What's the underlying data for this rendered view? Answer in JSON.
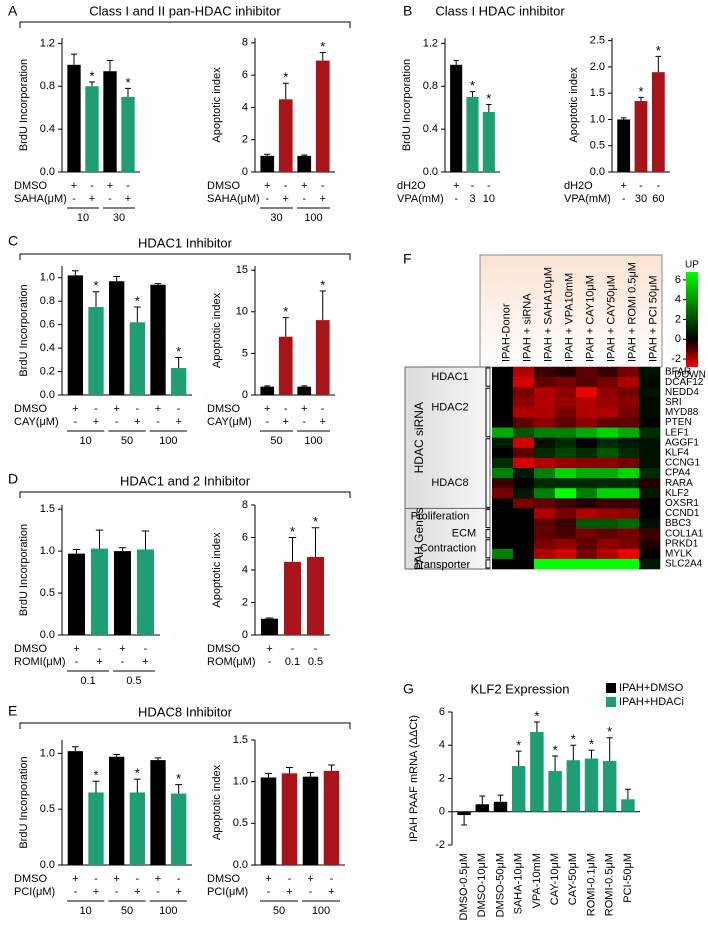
{
  "panels": [
    {
      "label": "A",
      "title": "Class I and II pan-HDAC inhibitor"
    },
    {
      "label": "B",
      "title": "Class I HDAC inhibitor"
    },
    {
      "label": "C",
      "title": "HDAC1 Inhibitor"
    },
    {
      "label": "D",
      "title": "HDAC1 and 2 Inhibitor"
    },
    {
      "label": "E",
      "title": "HDAC8 Inhibitor"
    },
    {
      "label": "F"
    },
    {
      "label": "G"
    }
  ],
  "chart_data": [
    {
      "type": "bar",
      "ylabel": "BrdU Incorporation",
      "ylim": [
        0,
        1.25
      ],
      "yticks": [
        {
          "value": 0,
          "label": "0.0"
        },
        0.4,
        0.8,
        1.2
      ],
      "values": [
        1.0,
        0.8,
        0.94,
        0.7
      ],
      "errors": [
        0.1,
        0.04,
        0.1,
        0.08
      ],
      "colors": [
        "#000000",
        "#1f9e73",
        "#000000",
        "#1f9e73"
      ],
      "markers": [
        null,
        "*",
        null,
        "*"
      ],
      "conditions": [
        {
          "label": "DMSO",
          "values": [
            "+",
            "-",
            "+",
            "-"
          ]
        },
        {
          "label": "SAHA(μM)",
          "values": [
            "-",
            "+",
            "-",
            "+"
          ]
        }
      ],
      "groups": [
        "10",
        "30"
      ]
    },
    {
      "type": "bar",
      "ylabel": "Apoptotic index",
      "ylim": [
        0,
        8.3
      ],
      "yticks": [
        0,
        2,
        4,
        6,
        8
      ],
      "values": [
        1.0,
        4.5,
        1.0,
        6.9
      ],
      "errors": [
        0.1,
        1.0,
        0.05,
        0.5
      ],
      "colors": [
        "#000000",
        "#a8141a",
        "#000000",
        "#a8141a"
      ],
      "markers": [
        null,
        "*",
        null,
        "*"
      ],
      "conditions": [
        {
          "label": "DMSO",
          "values": [
            "+",
            "-",
            "+",
            "-"
          ]
        },
        {
          "label": "SAHA(μM)",
          "values": [
            "-",
            "+",
            "-",
            "+"
          ]
        }
      ],
      "groups": [
        "30",
        "100"
      ]
    },
    {
      "type": "bar",
      "ylabel": "BrdU Incorporation",
      "ylim": [
        0,
        1.25
      ],
      "yticks": [
        {
          "value": 0,
          "label": "0.0"
        },
        0.4,
        0.8,
        1.2
      ],
      "values": [
        1.0,
        0.7,
        0.56
      ],
      "errors": [
        0.04,
        0.05,
        0.07
      ],
      "colors": [
        "#000000",
        "#1f9e73",
        "#1f9e73"
      ],
      "markers": [
        null,
        "*",
        "*"
      ],
      "conditions": [
        {
          "label": "dH2O",
          "values": [
            "+",
            "-",
            "-"
          ]
        },
        {
          "label": "VPA(mM)",
          "values": [
            "-",
            "3",
            "10"
          ]
        }
      ]
    },
    {
      "type": "bar",
      "ylabel": "Apoptotic index",
      "ylim": [
        0,
        2.55
      ],
      "yticks": [
        {
          "value": 0,
          "label": "0.0"
        },
        0.5,
        {
          "value": 1,
          "label": "1.0"
        },
        1.5,
        {
          "value": 2,
          "label": "2.0"
        },
        2.5
      ],
      "values": [
        1.0,
        1.35,
        1.9
      ],
      "errors": [
        0.03,
        0.07,
        0.3
      ],
      "colors": [
        "#000000",
        "#a8141a",
        "#a8141a"
      ],
      "markers": [
        null,
        "*",
        "*"
      ],
      "conditions": [
        {
          "label": "dH2O",
          "values": [
            "+",
            "-",
            "-"
          ]
        },
        {
          "label": "VPA(mM)",
          "values": [
            "-",
            "30",
            "60"
          ]
        }
      ]
    },
    {
      "type": "bar",
      "ylabel": "BrdU Incorporation",
      "ylim": [
        0,
        1.1
      ],
      "yticks": [
        {
          "value": 0,
          "label": "0.0"
        },
        0.2,
        0.4,
        0.6,
        0.8,
        {
          "value": 1,
          "label": "1.0"
        }
      ],
      "values": [
        1.02,
        0.75,
        0.97,
        0.62,
        0.94,
        0.23
      ],
      "errors": [
        0.04,
        0.13,
        0.04,
        0.13,
        0.01,
        0.09
      ],
      "colors": [
        "#000000",
        "#1f9e73",
        "#000000",
        "#1f9e73",
        "#000000",
        "#1f9e73"
      ],
      "markers": [
        null,
        "*",
        null,
        "*",
        null,
        "*"
      ],
      "conditions": [
        {
          "label": "DMSO",
          "values": [
            "+",
            "-",
            "+",
            "-",
            "+",
            "-"
          ]
        },
        {
          "label": "CAY(μM)",
          "values": [
            "-",
            "+",
            "-",
            "+",
            "-",
            "+"
          ]
        }
      ],
      "groups": [
        "10",
        "50",
        "100"
      ]
    },
    {
      "type": "bar",
      "ylabel": "Apoptotic index",
      "ylim": [
        0,
        15.5
      ],
      "yticks": [
        0,
        5,
        10,
        15
      ],
      "values": [
        1.0,
        7.0,
        1.0,
        9.0
      ],
      "errors": [
        0.1,
        2.3,
        0.1,
        3.5
      ],
      "colors": [
        "#000000",
        "#a8141a",
        "#000000",
        "#a8141a"
      ],
      "markers": [
        null,
        "*",
        null,
        "*"
      ],
      "conditions": [
        {
          "label": "DMSO",
          "values": [
            "+",
            "-",
            "+",
            "-"
          ]
        },
        {
          "label": "CAY(μM)",
          "values": [
            "-",
            "+",
            "-",
            "+"
          ]
        }
      ],
      "groups": [
        "50",
        "100"
      ]
    },
    {
      "type": "bar",
      "ylabel": "BrdU Incorporation",
      "ylim": [
        0,
        1.55
      ],
      "yticks": [
        {
          "value": 0,
          "label": "0.0"
        },
        0.5,
        {
          "value": 1,
          "label": "1.0"
        },
        1.5
      ],
      "values": [
        0.97,
        1.03,
        1.0,
        1.02
      ],
      "errors": [
        0.05,
        0.22,
        0.04,
        0.22
      ],
      "colors": [
        "#000000",
        "#1f9e73",
        "#000000",
        "#1f9e73"
      ],
      "markers": [
        null,
        null,
        null,
        null
      ],
      "conditions": [
        {
          "label": "DMSO",
          "values": [
            "+",
            "-",
            "+",
            "-"
          ]
        },
        {
          "label": "ROMI(μM)",
          "values": [
            "-",
            "+",
            "-",
            "+"
          ]
        }
      ],
      "groups": [
        "0.1",
        "0.5"
      ]
    },
    {
      "type": "bar",
      "ylabel": "Apoptotic index",
      "ylim": [
        0,
        8
      ],
      "yticks": [
        0,
        2,
        4,
        6,
        8
      ],
      "values": [
        1.0,
        4.5,
        4.8
      ],
      "errors": [
        0.05,
        1.5,
        1.8
      ],
      "colors": [
        "#000000",
        "#a8141a",
        "#a8141a"
      ],
      "markers": [
        null,
        "*",
        "*"
      ],
      "conditions": [
        {
          "label": "DMSO",
          "values": [
            "+",
            "-",
            "-"
          ]
        },
        {
          "label": "ROM(μM)",
          "values": [
            "-",
            "0.1",
            "0.5"
          ]
        }
      ]
    },
    {
      "type": "bar",
      "ylabel": "BrdU Incorporation",
      "ylim": [
        0,
        1.12
      ],
      "yticks": [
        {
          "value": 0,
          "label": "0.0"
        },
        0.5,
        {
          "value": 1,
          "label": "1.0"
        }
      ],
      "values": [
        1.02,
        0.65,
        0.97,
        0.65,
        0.94,
        0.64
      ],
      "errors": [
        0.04,
        0.1,
        0.02,
        0.12,
        0.02,
        0.08
      ],
      "colors": [
        "#000000",
        "#1f9e73",
        "#000000",
        "#1f9e73",
        "#000000",
        "#1f9e73"
      ],
      "markers": [
        null,
        "*",
        null,
        "*",
        null,
        "*"
      ],
      "conditions": [
        {
          "label": "DMSO",
          "values": [
            "+",
            "-",
            "+",
            "-",
            "+",
            "-"
          ]
        },
        {
          "label": "PCI(μM)",
          "values": [
            "-",
            "+",
            "-",
            "+",
            "-",
            "+"
          ]
        }
      ],
      "groups": [
        "10",
        "50",
        "100"
      ]
    },
    {
      "type": "bar",
      "ylabel": "Apoptotic index",
      "ylim": [
        0,
        1.5
      ],
      "yticks": [
        {
          "value": 0,
          "label": "0.0"
        },
        0.5,
        {
          "value": 1,
          "label": "1.0"
        },
        1.5
      ],
      "values": [
        1.05,
        1.1,
        1.06,
        1.13
      ],
      "errors": [
        0.05,
        0.07,
        0.05,
        0.07
      ],
      "colors": [
        "#000000",
        "#a8141a",
        "#000000",
        "#a8141a"
      ],
      "markers": [
        null,
        null,
        null,
        null
      ],
      "conditions": [
        {
          "label": "DMSO",
          "values": [
            "+",
            "-",
            "+",
            "-"
          ]
        },
        {
          "label": "PCI(μM)",
          "values": [
            "-",
            "+",
            "-",
            "+"
          ]
        }
      ],
      "groups": [
        "50",
        "100"
      ]
    },
    {
      "type": "heatmap",
      "columns": [
        "IPAH-Donor",
        "IPAH + siRNA",
        "IPAH + SAHA10μM",
        "IPAH + VPA10mM",
        "IPAH + CAY10μM",
        "IPAH + CAY50μM",
        "IPAH + ROMI 0.5μM",
        "IPAH + PCI 50μM"
      ],
      "rows": [
        "BFAR",
        "DCAF12",
        "NEDD4",
        "SRI",
        "MYD88",
        "PTEN",
        "LEF1",
        "AGGF1",
        "KLF4",
        "CCNG1",
        "CPA4",
        "RARA",
        "KLF2",
        "OXSR1",
        "CCND1",
        "BBC3",
        "COL1A1",
        "PRKD1",
        "MYLK",
        "SLC2A4"
      ],
      "values": [
        [
          0,
          -1.5,
          -0.5,
          -0.3,
          -0.8,
          -0.5,
          -1,
          0.2
        ],
        [
          0,
          -1.8,
          -0.8,
          -1,
          -0.7,
          -1,
          -1.5,
          0.1
        ],
        [
          0,
          -1,
          -1.5,
          -1.2,
          -2,
          -1.2,
          -1,
          0.2
        ],
        [
          0,
          -1.2,
          -1.5,
          -1.3,
          -1.5,
          -1.3,
          -1.2,
          0.1
        ],
        [
          0,
          -1.5,
          -1.5,
          -1,
          -1.5,
          -1.5,
          -1,
          0.1
        ],
        [
          0,
          -0.8,
          -1.2,
          -0.8,
          -1.2,
          -0.8,
          -0.8,
          0
        ],
        [
          2,
          1,
          1.5,
          1.5,
          2,
          2.5,
          2,
          0.5
        ],
        [
          0.3,
          -1.8,
          0.2,
          0.5,
          0,
          0.5,
          0.3,
          0.2
        ],
        [
          0,
          -0.8,
          0.5,
          0.8,
          0.5,
          1,
          0.5,
          0.2
        ],
        [
          0.5,
          -1.8,
          -1.5,
          -1.3,
          -1.2,
          -1.2,
          -1,
          0.2
        ],
        [
          1.5,
          0.3,
          1.5,
          2.5,
          2,
          2,
          2.5,
          0.5
        ],
        [
          -0.5,
          0,
          0.5,
          0.5,
          0.5,
          0.5,
          0.5,
          -0.3
        ],
        [
          -1,
          0.3,
          1.5,
          3,
          1.5,
          2.5,
          2.5,
          0.3
        ],
        [
          0,
          -1,
          -0.8,
          -0.5,
          -0.3,
          -0.5,
          -0.5,
          0
        ],
        [
          0,
          0,
          -1.5,
          -1,
          -1.5,
          -1.3,
          -1.2,
          0
        ],
        [
          0,
          0,
          -0.8,
          -0.5,
          1,
          1,
          1.2,
          0.2
        ],
        [
          0,
          0,
          -0.8,
          -0.6,
          -1,
          -0.8,
          -1,
          -0.5
        ],
        [
          0,
          0,
          -1,
          -1.2,
          -0.8,
          -1.2,
          -1,
          -0.3
        ],
        [
          1.5,
          0,
          -1.5,
          -1.8,
          -1,
          -1.5,
          -2,
          0
        ],
        [
          0,
          0,
          5,
          5.5,
          5,
          5,
          5.5,
          0.3
        ]
      ],
      "zlim": [
        -2.8,
        6.8
      ],
      "zticks": [
        6,
        4,
        2,
        0,
        -2
      ],
      "top_label": "UP",
      "bottom_label": "DOWN",
      "row_groups": [
        {
          "label": "HDAC  siRNA",
          "subgroups": [
            "HDAC1",
            "HDAC2",
            "HDAC8"
          ]
        },
        {
          "label": "PAH Genes",
          "subgroups": [
            "Proliferation",
            "ECM",
            "Contraction",
            "Transporter"
          ]
        }
      ]
    },
    {
      "type": "bar",
      "title": "KLF2 Expression",
      "ylabel": "IPAH  PAAF mRNA (ΔΔCt)",
      "ylim": [
        -2,
        6
      ],
      "yticks": [
        -2,
        0,
        2,
        4,
        6
      ],
      "categories": [
        "DMSO-0.5μM",
        "DMSO-10μM",
        "DMSO-50μM",
        "SAHA-10μM",
        "VPA-10mM",
        "CAY-10μM",
        "CAY-50μM",
        "ROMI-0.1μM",
        "ROMI-0.5μM",
        "PCI-50μM"
      ],
      "values": [
        -0.2,
        0.45,
        0.6,
        2.75,
        4.8,
        2.45,
        3.1,
        3.2,
        3.05,
        0.75
      ],
      "errors": [
        0.6,
        0.5,
        0.4,
        0.9,
        0.6,
        0.9,
        0.9,
        0.5,
        1.4,
        0.6
      ],
      "colors": [
        "#000000",
        "#000000",
        "#000000",
        "#1f9e73",
        "#1f9e73",
        "#1f9e73",
        "#1f9e73",
        "#1f9e73",
        "#1f9e73",
        "#1f9e73"
      ],
      "markers": [
        null,
        null,
        null,
        "*",
        "*",
        "*",
        "*",
        "*",
        "*",
        null
      ],
      "legend": [
        {
          "name": "IPAH+DMSO",
          "color": "#000000"
        },
        {
          "name": "IPAH+HDACi",
          "color": "#1f9e73"
        }
      ]
    }
  ]
}
